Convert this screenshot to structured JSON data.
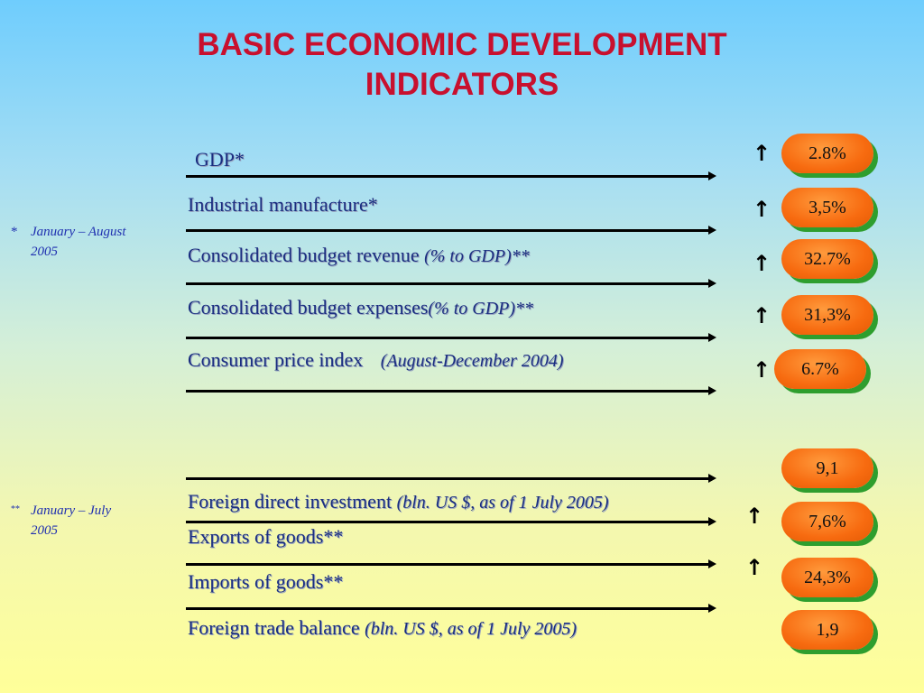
{
  "title_line1": "BASIC ECONOMIC DEVELOPMENT",
  "title_line2": "INDICATORS",
  "notes": [
    {
      "mark": "*",
      "line1": "January – August",
      "line2": "2005"
    },
    {
      "mark": "**",
      "line1": "January – July",
      "line2": "2005"
    }
  ],
  "indicators": [
    {
      "label": "GDP*",
      "qualifier": "",
      "value": "2.8%",
      "trend_arrow": "↑"
    },
    {
      "label": "Industrial manufacture*",
      "qualifier": "",
      "value": "3,5%",
      "trend_arrow": "↑"
    },
    {
      "label": "Consolidated budget revenue",
      "qualifier": "(% to GDP)**",
      "value": "32.7%",
      "trend_arrow": "↑"
    },
    {
      "label": "Consolidated budget expenses",
      "qualifier": "(% to GDP)**",
      "value": "31,3%",
      "trend_arrow": "↑"
    },
    {
      "label": "Consumer price index",
      "qualifier": "(August-December 2004)",
      "value": "6.7%",
      "trend_arrow": "↑"
    },
    {
      "label": "Foreign direct investment",
      "qualifier": "(bln. US $, as of 1 July 2005)",
      "value": "9,1",
      "trend_arrow": ""
    },
    {
      "label": "Exports of goods**",
      "qualifier": "",
      "value": "7,6%",
      "trend_arrow": "↑"
    },
    {
      "label": "Imports of goods**",
      "qualifier": "",
      "value": "24,3%",
      "trend_arrow": "↑"
    },
    {
      "label": "Foreign trade balance",
      "qualifier": "(bln. US $, as of 1 July 2005)",
      "value": "1,9",
      "trend_arrow": ""
    }
  ]
}
